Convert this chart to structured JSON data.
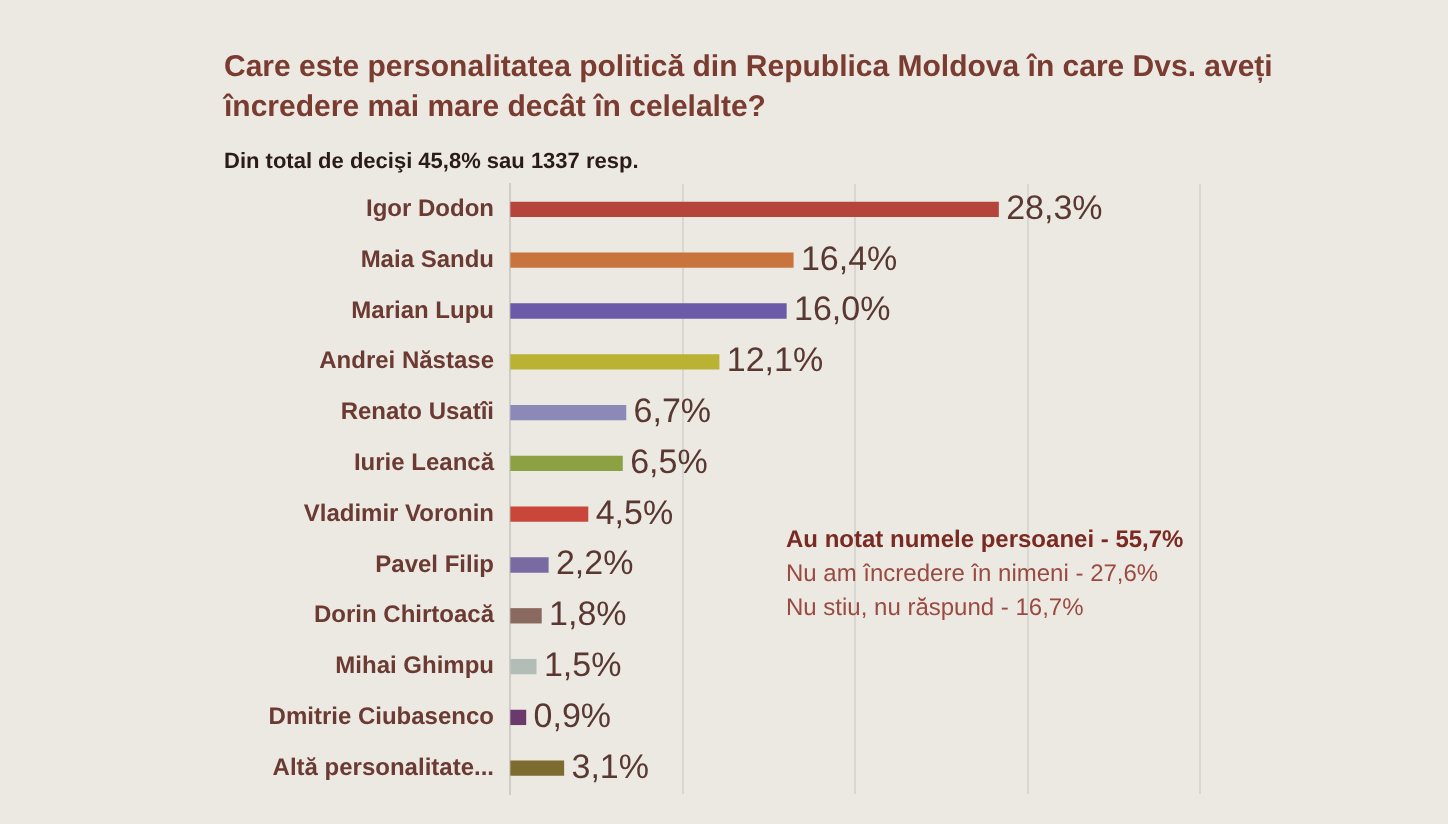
{
  "chart_data": {
    "type": "bar",
    "orientation": "horizontal",
    "title": "Care este personalitatea politică din Republica Moldova în care Dvs. aveți încredere mai mare decât în celelalte?",
    "subtitle": "Din total de decişi 45,8% sau 1337 resp.",
    "categories": [
      "Igor Dodon",
      "Maia Sandu",
      "Marian Lupu",
      "Andrei Năstase",
      "Renato Usatîi",
      "Iurie Leancă",
      "Vladimir Voronin",
      "Pavel Filip",
      "Dorin Chirtoacă",
      "Mihai Ghimpu",
      "Dmitrie Ciubasenco",
      "Altă personalitate..."
    ],
    "values": [
      28.3,
      16.4,
      16.0,
      12.1,
      6.7,
      6.5,
      4.5,
      2.2,
      1.8,
      1.5,
      0.9,
      3.1
    ],
    "colors": [
      "#b5453a",
      "#c8743c",
      "#6a5aa8",
      "#b9b233",
      "#8b89b8",
      "#8ba142",
      "#c8463a",
      "#7a6aa2",
      "#8a6a5e",
      "#b2bdb8",
      "#6a3a6c",
      "#7d6b30"
    ],
    "value_labels": [
      "28,3%",
      "16,4%",
      "16,0%",
      "12,1%",
      "6,7%",
      "6,5%",
      "4,5%",
      "2,2%",
      "1,8%",
      "1,5%",
      "0,9%",
      "3,1%"
    ],
    "xlim": [
      0,
      40
    ],
    "xticks": [
      0,
      10,
      20,
      30,
      40
    ],
    "grid": "x",
    "tick_labels": "y",
    "annotations": [
      "Au notat numele persoanei - 55,7%",
      "Nu am încredere în nimeni - 27,6%",
      "Nu stiu, nu răspund - 16,7%"
    ]
  }
}
